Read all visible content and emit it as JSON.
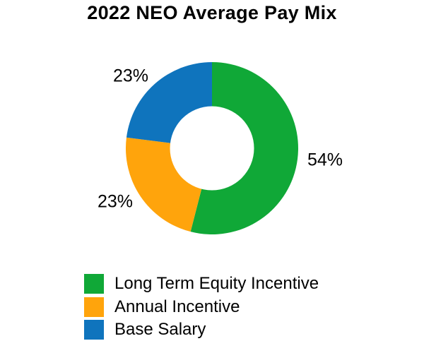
{
  "chart_data": {
    "type": "pie",
    "subtype": "donut",
    "title": "2022 NEO Average Pay Mix",
    "direction": "clockwise",
    "start_angle_deg": 0,
    "hole_ratio": 0.48,
    "legend_position": "bottom-left",
    "background_color": "#FFFFFF",
    "text_color": "#000000",
    "segments": [
      {
        "label": "Long Term Equity Incentive",
        "value": 54,
        "display": "54%",
        "color": "#10A837"
      },
      {
        "label": "Annual Incentive",
        "value": 23,
        "display": "23%",
        "color": "#FFA40C"
      },
      {
        "label": "Base Salary",
        "value": 23,
        "display": "23%",
        "color": "#0F74BD"
      }
    ]
  }
}
